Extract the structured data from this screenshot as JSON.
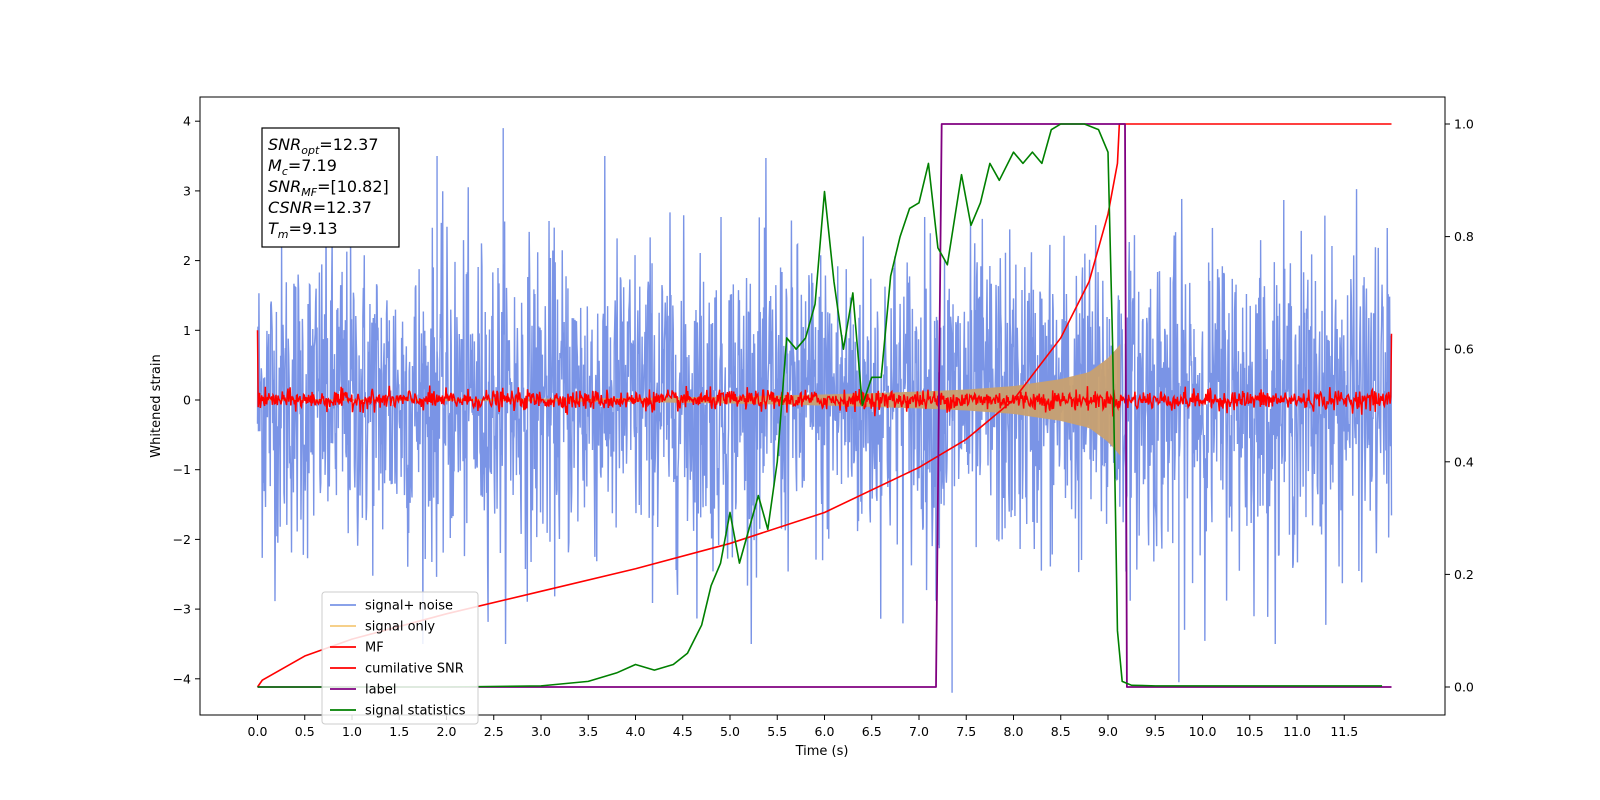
{
  "chart_data": {
    "type": "line",
    "xlabel": "Time (s)",
    "ylabel": "Whitened strain",
    "xlim": [
      -0.6,
      12.6
    ],
    "ylim": [
      -4.45,
      4.3
    ],
    "y2lim": [
      -0.05,
      1.03
    ],
    "x_ticks": [
      "0.0",
      "0.5",
      "1.0",
      "1.5",
      "2.0",
      "2.5",
      "3.0",
      "3.5",
      "4.0",
      "4.5",
      "5.0",
      "5.5",
      "6.0",
      "6.5",
      "7.0",
      "7.5",
      "8.0",
      "8.5",
      "9.0",
      "9.5",
      "10.0",
      "10.5",
      "11.0",
      "11.5"
    ],
    "y_ticks": [
      "4",
      "3",
      "2",
      "1",
      "0",
      "−1",
      "−2",
      "−3",
      "−4"
    ],
    "y2_ticks": [
      "1.0",
      "0.8",
      "0.6",
      "0.4",
      "0.2",
      "0.0"
    ],
    "info_box": [
      {
        "main": "SNR",
        "sub": "opt",
        "value": "=12.37"
      },
      {
        "main": "M",
        "sub": "c",
        "value": "=7.19"
      },
      {
        "main": "SNR",
        "sub": "MF",
        "value": "=[10.82]"
      },
      {
        "main": "CSNR",
        "sub": "",
        "value": "=12.37"
      },
      {
        "main": "T",
        "sub": "m",
        "value": "=9.13"
      }
    ],
    "legend": {
      "location": "lower-left",
      "entries": [
        {
          "label": "signal+ noise",
          "color": "#7a94e6"
        },
        {
          "label": "signal only",
          "color": "#f5c97a"
        },
        {
          "label": "MF",
          "color": "#ff0000"
        },
        {
          "label": "cumilative SNR",
          "color": "#ff0000"
        },
        {
          "label": "label",
          "color": "#800080"
        },
        {
          "label": "signal statistics",
          "color": "#008000"
        }
      ]
    },
    "series": [
      {
        "name": "signal+ noise",
        "axis": "left",
        "color": "#7a94e6",
        "description": "noise band",
        "x_range": [
          0.0,
          12.0
        ],
        "amplitude": 1.1,
        "peak_extremes": [
          3.9,
          -4.2
        ]
      },
      {
        "name": "signal only",
        "axis": "left",
        "color": "#c8a070",
        "x": [
          0.0,
          1.0,
          2.0,
          3.0,
          4.0,
          5.0,
          6.0,
          7.0,
          7.5,
          8.0,
          8.5,
          8.8,
          9.0,
          9.1,
          9.13
        ],
        "envelope": [
          0.01,
          0.01,
          0.015,
          0.02,
          0.03,
          0.05,
          0.08,
          0.12,
          0.15,
          0.2,
          0.3,
          0.4,
          0.6,
          0.75,
          0.8
        ]
      },
      {
        "name": "MF",
        "axis": "left",
        "color": "#ff0000",
        "x_range": [
          0.0,
          12.0
        ],
        "amplitude": 0.07,
        "edge_values": [
          1.0,
          0.95
        ]
      },
      {
        "name": "cumilative SNR",
        "axis": "right",
        "color": "#ff0000",
        "x": [
          0.0,
          0.05,
          0.5,
          1.0,
          2.0,
          3.0,
          4.0,
          5.0,
          6.0,
          7.0,
          7.5,
          8.0,
          8.5,
          8.8,
          9.0,
          9.1,
          9.12,
          12.0
        ],
        "y": [
          0.0,
          0.012,
          0.055,
          0.085,
          0.13,
          0.17,
          0.21,
          0.255,
          0.31,
          0.39,
          0.44,
          0.51,
          0.62,
          0.72,
          0.84,
          0.93,
          1.0,
          1.0
        ]
      },
      {
        "name": "label",
        "axis": "right",
        "color": "#800080",
        "x": [
          0.0,
          7.18,
          7.24,
          9.18,
          9.2,
          12.0
        ],
        "y": [
          0.0,
          0.0,
          1.0,
          1.0,
          0.0,
          0.0
        ]
      },
      {
        "name": "signal statistics",
        "axis": "right",
        "color": "#008000",
        "x": [
          0.0,
          1.0,
          2.0,
          3.0,
          3.5,
          3.8,
          4.0,
          4.2,
          4.4,
          4.55,
          4.7,
          4.8,
          4.9,
          5.0,
          5.1,
          5.2,
          5.3,
          5.4,
          5.5,
          5.6,
          5.7,
          5.8,
          5.9,
          6.0,
          6.1,
          6.2,
          6.3,
          6.4,
          6.5,
          6.6,
          6.7,
          6.8,
          6.9,
          7.0,
          7.1,
          7.2,
          7.3,
          7.45,
          7.55,
          7.65,
          7.75,
          7.85,
          8.0,
          8.1,
          8.2,
          8.3,
          8.4,
          8.5,
          8.6,
          8.75,
          8.9,
          9.0,
          9.05,
          9.1,
          9.15,
          9.25,
          9.5,
          11.9
        ],
        "y": [
          0.0,
          0.0,
          0.0,
          0.002,
          0.01,
          0.025,
          0.04,
          0.03,
          0.04,
          0.06,
          0.11,
          0.18,
          0.22,
          0.31,
          0.22,
          0.28,
          0.34,
          0.28,
          0.4,
          0.62,
          0.6,
          0.62,
          0.68,
          0.88,
          0.72,
          0.6,
          0.7,
          0.5,
          0.55,
          0.55,
          0.73,
          0.8,
          0.85,
          0.86,
          0.93,
          0.78,
          0.75,
          0.91,
          0.82,
          0.86,
          0.93,
          0.9,
          0.95,
          0.93,
          0.95,
          0.93,
          0.99,
          1.0,
          1.0,
          1.0,
          0.99,
          0.95,
          0.6,
          0.1,
          0.01,
          0.003,
          0.002,
          0.002
        ]
      }
    ]
  }
}
